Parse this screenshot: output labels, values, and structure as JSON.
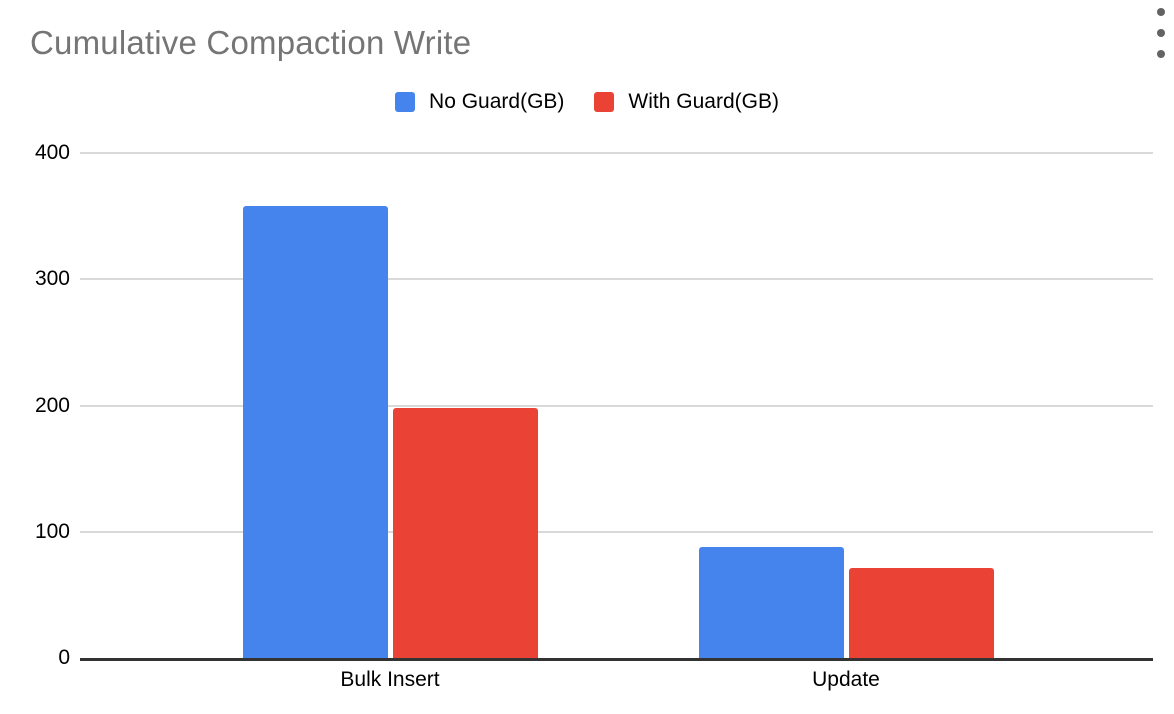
{
  "menu": {
    "icon": "kebab-menu"
  },
  "chart_data": {
    "type": "bar",
    "title": "Cumulative Compaction Write",
    "categories": [
      "Bulk Insert",
      "Update"
    ],
    "series": [
      {
        "name": "No Guard(GB)",
        "color": "#4584ED",
        "values": [
          358,
          88
        ]
      },
      {
        "name": "With Guard(GB)",
        "color": "#EA4335",
        "values": [
          198,
          71
        ]
      }
    ],
    "xlabel": "",
    "ylabel": "",
    "ylim": [
      0,
      400
    ],
    "yticks": [
      0,
      100,
      200,
      300,
      400
    ],
    "grid": true,
    "legend_position": "top-center",
    "colors": {
      "grid": "#d9d9d9",
      "axis": "#333333",
      "title": "#757575",
      "label": "#000000",
      "menu_icon": "#636363"
    }
  }
}
